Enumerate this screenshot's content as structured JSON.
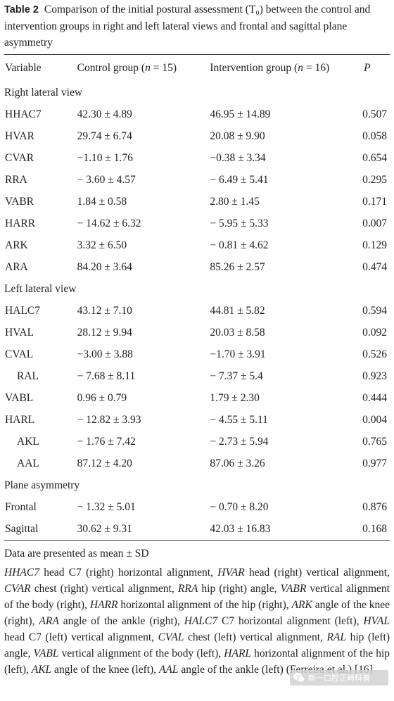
{
  "caption": {
    "label": "Table 2",
    "text": "Comparison of the initial postural assessment (T₀) between the control and intervention groups in right and left lateral views and frontal and sagittal plane asymmetry"
  },
  "table": {
    "headers": [
      "Variable",
      "Control group (n = 15)",
      "Intervention group (n = 16)",
      "P"
    ],
    "sections": [
      {
        "title": "Right lateral view",
        "rows": [
          [
            "HHAC7",
            "42.30 ± 4.89",
            "46.95 ± 14.89",
            "0.507"
          ],
          [
            "HVAR",
            "29.74 ± 6.74",
            "20.08 ± 9.90",
            "0.058"
          ],
          [
            "CVAR",
            "−1.10 ± 1.76",
            "−0.38 ± 3.34",
            "0.654"
          ],
          [
            "RRA",
            "− 3.60 ± 4.57",
            "− 6.49 ± 5.41",
            "0.295"
          ],
          [
            "VABR",
            "1.84 ± 0.58",
            "2.80 ± 1.45",
            "0.171"
          ],
          [
            "HARR",
            "− 14.62 ± 6.32",
            "− 5.95 ± 5.33",
            "0.007"
          ],
          [
            "ARK",
            "3.32 ± 6.50",
            "− 0.81 ± 4.62",
            "0.129"
          ],
          [
            "ARA",
            "84.20 ± 3.64",
            "85.26 ± 2.57",
            "0.474"
          ]
        ]
      },
      {
        "title": "Left lateral view",
        "rows": [
          [
            "HALC7",
            "43.12 ± 7.10",
            "44.81 ± 5.82",
            "0.594"
          ],
          [
            "HVAL",
            "28.12 ± 9.94",
            "20.03 ± 8.58",
            "0.092"
          ],
          [
            "CVAL",
            "−3.00 ± 3.88",
            "−1.70 ± 3.91",
            "0.526"
          ],
          [
            "RAL",
            "− 7.68 ± 8.11",
            "− 7.37 ± 5.4",
            "0.923"
          ],
          [
            "VABL",
            "0.96 ± 0.79",
            "1.79 ± 2.30",
            "0.444"
          ],
          [
            "HARL",
            "− 12.82 ± 3.93",
            "− 4.55 ± 5.11",
            "0.004"
          ],
          [
            "AKL",
            "− 1.76 ± 7.42",
            "− 2.73 ± 5.94",
            "0.765"
          ],
          [
            "AAL",
            "87.12 ± 4.20",
            "87.06 ± 3.26",
            "0.977"
          ]
        ]
      },
      {
        "title": "Plane asymmetry",
        "rows": [
          [
            "Frontal",
            "− 1.32 ± 5.01",
            "− 0.70 ± 8.20",
            "0.876"
          ],
          [
            "Sagittal",
            "30.62 ± 9.31",
            "42.03 ± 16.83",
            "0.168"
          ]
        ]
      }
    ]
  },
  "notes": {
    "data_note": "Data are presented as mean ± SD",
    "legend": "HHAC7 head C7 (right) horizontal alignment, HVAR head (right) vertical alignment, CVAR chest (right) vertical alignment, RRA hip (right) angle, VABR vertical alignment of the body (right), HARR horizontal alignment of the hip (right), ARK angle of the knee (right), ARA angle of the ankle (right), HALC7 C7 horizontal alignment (left), HVAL head C7 (left) vertical alignment, CVAL chest (left) vertical alignment, RAL hip (left) angle, VABL vertical alignment of the body (left), HARL horizontal alignment of the hip (left), AKL angle of the knee (left), AAL angle of the ankle (left) (Ferreira et al.) [16]"
  },
  "watermark": {
    "text": "新一口腔正畸科普",
    "icon": "wechat-icon",
    "color": "#d2d2d2"
  }
}
